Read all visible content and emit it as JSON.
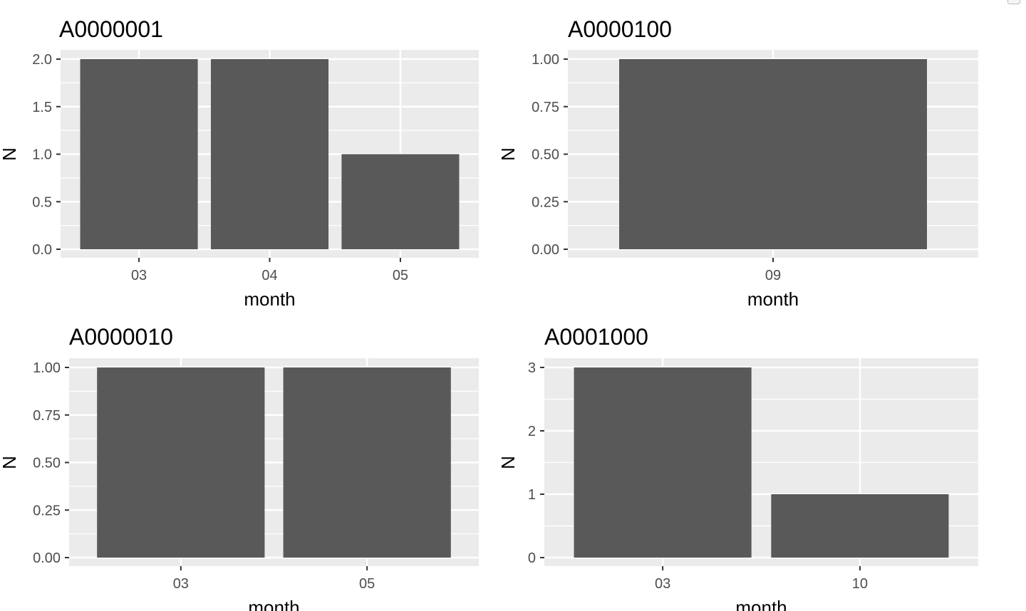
{
  "chart_data": [
    {
      "type": "bar",
      "title": "A0000001",
      "xlabel": "month",
      "ylabel": "N",
      "categories": [
        "03",
        "04",
        "05"
      ],
      "values": [
        2,
        2,
        1
      ],
      "ylim": [
        0,
        2
      ],
      "yticks": [
        "0.0",
        "0.5",
        "1.0",
        "1.5",
        "2.0"
      ],
      "ytick_values": [
        0,
        0.5,
        1,
        1.5,
        2
      ],
      "grid": true,
      "bar_color": "#595959",
      "panel_color": "#ebebeb"
    },
    {
      "type": "bar",
      "title": "A0000100",
      "xlabel": "month",
      "ylabel": "N",
      "categories": [
        "09"
      ],
      "values": [
        1
      ],
      "ylim": [
        0,
        1
      ],
      "yticks": [
        "0.00",
        "0.25",
        "0.50",
        "0.75",
        "1.00"
      ],
      "ytick_values": [
        0,
        0.25,
        0.5,
        0.75,
        1
      ],
      "grid": true,
      "bar_color": "#595959",
      "panel_color": "#ebebeb"
    },
    {
      "type": "bar",
      "title": "A0000010",
      "xlabel": "month",
      "ylabel": "N",
      "categories": [
        "03",
        "05"
      ],
      "values": [
        1,
        1
      ],
      "ylim": [
        0,
        1
      ],
      "yticks": [
        "0.00",
        "0.25",
        "0.50",
        "0.75",
        "1.00"
      ],
      "ytick_values": [
        0,
        0.25,
        0.5,
        0.75,
        1
      ],
      "grid": true,
      "bar_color": "#595959",
      "panel_color": "#ebebeb"
    },
    {
      "type": "bar",
      "title": "A0001000",
      "xlabel": "month",
      "ylabel": "N",
      "categories": [
        "03",
        "10"
      ],
      "values": [
        3,
        1
      ],
      "ylim": [
        0,
        3
      ],
      "yticks": [
        "0",
        "1",
        "2",
        "3"
      ],
      "ytick_values": [
        0,
        1,
        2,
        3
      ],
      "grid": true,
      "bar_color": "#595959",
      "panel_color": "#ebebeb"
    }
  ]
}
